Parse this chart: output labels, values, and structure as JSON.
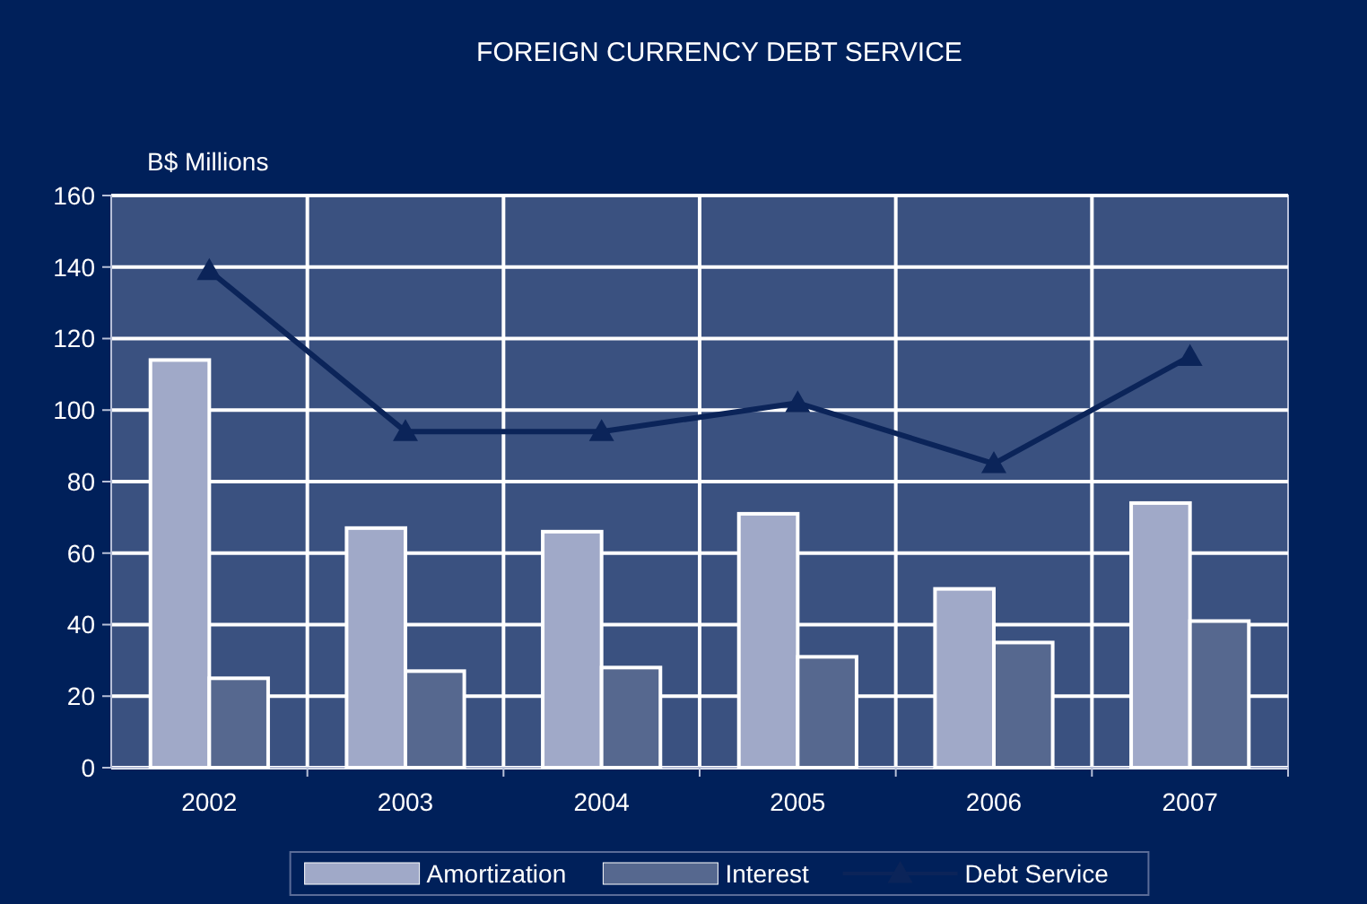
{
  "chart_data": {
    "type": "bar",
    "title": "FOREIGN CURRENCY DEBT SERVICE",
    "ylabel": "B$ Millions",
    "categories": [
      "2002",
      "2003",
      "2004",
      "2005",
      "2006",
      "2007"
    ],
    "series": [
      {
        "name": "Amortization",
        "color": "#a0a9c8",
        "values": [
          114,
          67,
          66,
          71,
          50,
          74
        ]
      },
      {
        "name": "Interest",
        "color": "#56688f",
        "values": [
          25,
          27,
          28,
          31,
          35,
          41
        ]
      },
      {
        "name": "Debt Service",
        "type": "line",
        "color": "#0b2459",
        "marker": "triangle",
        "values": [
          139,
          94,
          94,
          102,
          85,
          115
        ]
      }
    ],
    "ylim": [
      0,
      160
    ],
    "yticks": [
      0,
      20,
      40,
      60,
      80,
      100,
      120,
      140,
      160
    ],
    "grid": true,
    "legend": "bottom"
  }
}
